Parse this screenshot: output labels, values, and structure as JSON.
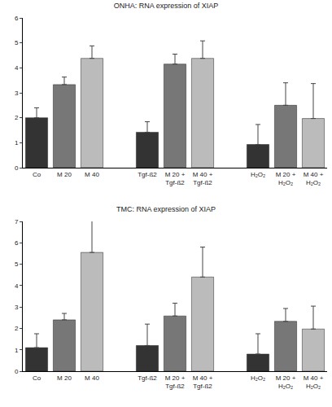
{
  "chart_data": [
    {
      "type": "bar",
      "title": "ONHA: RNA expression of XIAP",
      "categories": [
        "Co",
        "M 20",
        "M 40",
        null,
        "Tgf-ß2",
        "M 20 + Tgf-ß2",
        "M 40 + Tgf-ß2",
        null,
        "H₂O₂",
        "M 20 + H₂O₂",
        "M 40 + H₂O₂"
      ],
      "values": [
        2.0,
        3.33,
        4.38,
        null,
        1.42,
        4.15,
        4.38,
        null,
        0.93,
        2.5,
        1.97
      ],
      "error": [
        0.4,
        0.3,
        0.5,
        null,
        0.42,
        0.4,
        0.7,
        null,
        0.8,
        0.9,
        1.4
      ],
      "colors": [
        "#333333",
        "#777777",
        "#bbbbbb",
        null,
        "#333333",
        "#777777",
        "#bbbbbb",
        null,
        "#333333",
        "#777777",
        "#bbbbbb"
      ],
      "ylim": [
        0,
        6
      ],
      "yticks": [
        0,
        1,
        2,
        3,
        4,
        5,
        6
      ],
      "grid": false
    },
    {
      "type": "bar",
      "title": "TMC: RNA expression of XIAP",
      "categories": [
        "Co",
        "M 20",
        "M 40",
        null,
        "Tgf-ß2",
        "M 20 + Tgf-ß2",
        "M 40 + Tgf-ß2",
        null,
        "H₂O₂",
        "M 20 + H₂O₂",
        "M 40 + H₂O₂"
      ],
      "values": [
        1.1,
        2.4,
        5.55,
        null,
        1.2,
        2.58,
        4.4,
        null,
        0.8,
        2.33,
        1.97
      ],
      "error": [
        0.65,
        0.3,
        1.55,
        null,
        1.0,
        0.6,
        1.4,
        null,
        0.95,
        0.6,
        1.07
      ],
      "colors": [
        "#333333",
        "#777777",
        "#bbbbbb",
        null,
        "#333333",
        "#777777",
        "#bbbbbb",
        null,
        "#333333",
        "#777777",
        "#bbbbbb"
      ],
      "ylim": [
        0,
        7
      ],
      "yticks": [
        0,
        1,
        2,
        3,
        4,
        5,
        6,
        7
      ],
      "grid": false
    }
  ]
}
